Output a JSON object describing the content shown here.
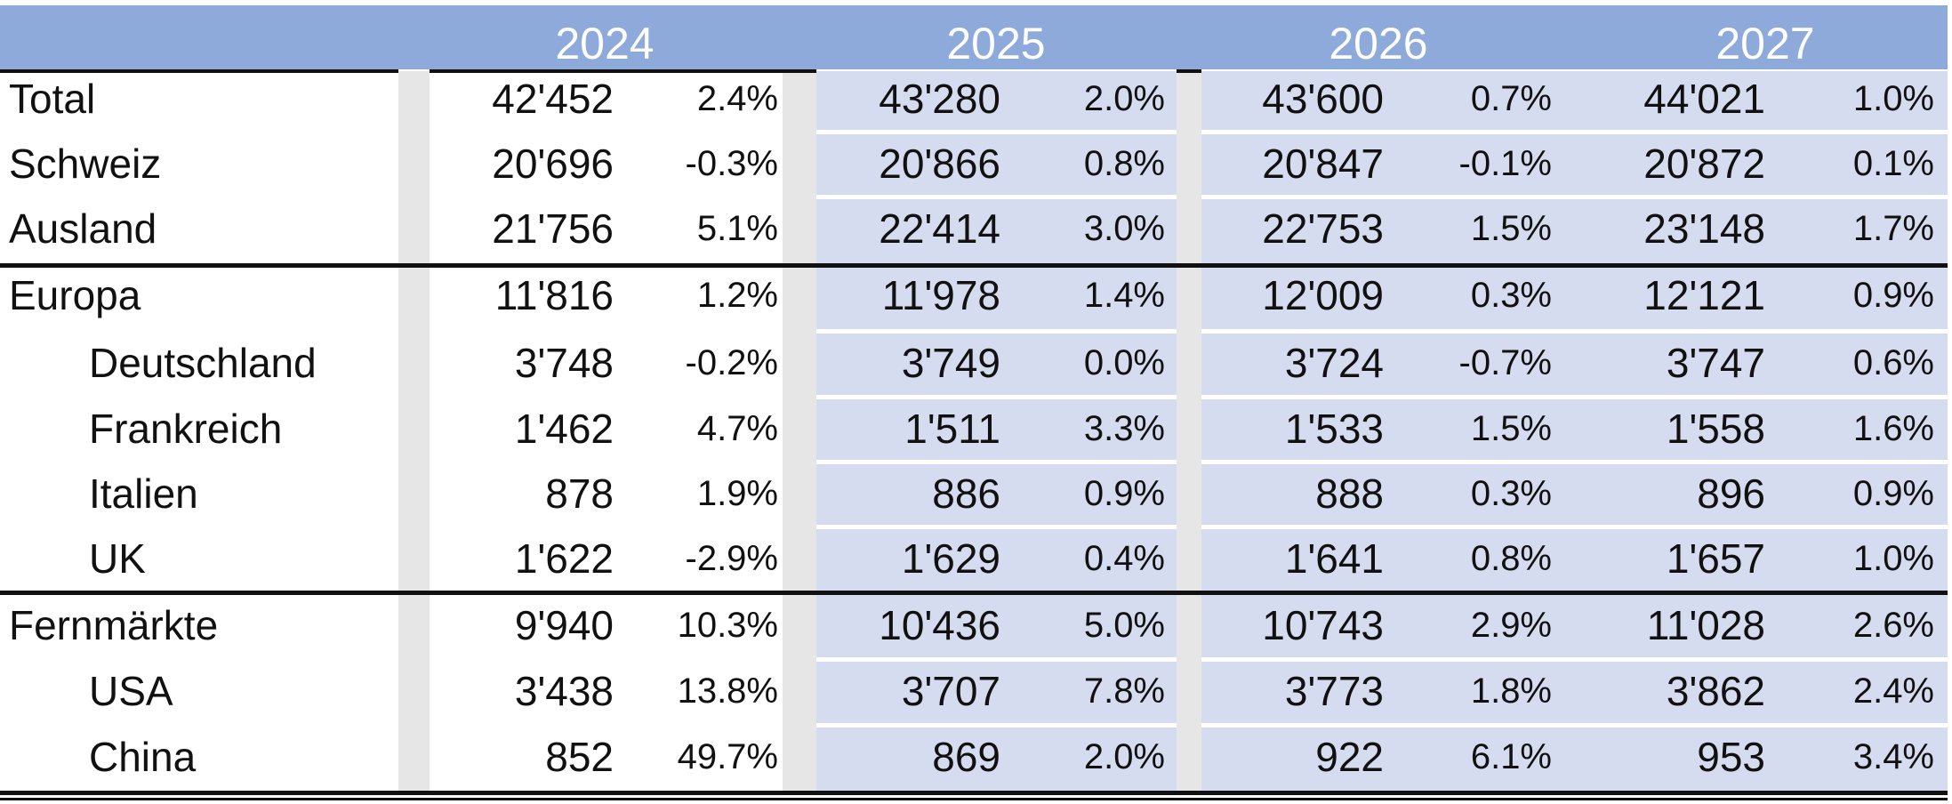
{
  "years": [
    "2024",
    "2025",
    "2026",
    "2027"
  ],
  "rows": [
    {
      "label": "Total",
      "cells": [
        [
          "42'452",
          "2.4%"
        ],
        [
          "43'280",
          "2.0%"
        ],
        [
          "43'600",
          "0.7%"
        ],
        [
          "44'021",
          "1.0%"
        ]
      ]
    },
    {
      "label": "Schweiz",
      "cells": [
        [
          "20'696",
          "-0.3%"
        ],
        [
          "20'866",
          "0.8%"
        ],
        [
          "20'847",
          "-0.1%"
        ],
        [
          "20'872",
          "0.1%"
        ]
      ]
    },
    {
      "label": "Ausland",
      "cells": [
        [
          "21'756",
          "5.1%"
        ],
        [
          "22'414",
          "3.0%"
        ],
        [
          "22'753",
          "1.5%"
        ],
        [
          "23'148",
          "1.7%"
        ]
      ]
    },
    {
      "label": "Europa",
      "cells": [
        [
          "11'816",
          "1.2%"
        ],
        [
          "11'978",
          "1.4%"
        ],
        [
          "12'009",
          "0.3%"
        ],
        [
          "12'121",
          "0.9%"
        ]
      ]
    },
    {
      "label": "Deutschland",
      "cells": [
        [
          "3'748",
          "-0.2%"
        ],
        [
          "3'749",
          "0.0%"
        ],
        [
          "3'724",
          "-0.7%"
        ],
        [
          "3'747",
          "0.6%"
        ]
      ]
    },
    {
      "label": "Frankreich",
      "cells": [
        [
          "1'462",
          "4.7%"
        ],
        [
          "1'511",
          "3.3%"
        ],
        [
          "1'533",
          "1.5%"
        ],
        [
          "1'558",
          "1.6%"
        ]
      ]
    },
    {
      "label": "Italien",
      "cells": [
        [
          "878",
          "1.9%"
        ],
        [
          "886",
          "0.9%"
        ],
        [
          "888",
          "0.3%"
        ],
        [
          "896",
          "0.9%"
        ]
      ]
    },
    {
      "label": "UK",
      "cells": [
        [
          "1'622",
          "-2.9%"
        ],
        [
          "1'629",
          "0.4%"
        ],
        [
          "1'641",
          "0.8%"
        ],
        [
          "1'657",
          "1.0%"
        ]
      ]
    },
    {
      "label": "Fernmärkte",
      "cells": [
        [
          "9'940",
          "10.3%"
        ],
        [
          "10'436",
          "5.0%"
        ],
        [
          "10'743",
          "2.9%"
        ],
        [
          "11'028",
          "2.6%"
        ]
      ]
    },
    {
      "label": "USA",
      "cells": [
        [
          "3'438",
          "13.8%"
        ],
        [
          "3'707",
          "7.8%"
        ],
        [
          "3'773",
          "1.8%"
        ],
        [
          "3'862",
          "2.4%"
        ]
      ]
    },
    {
      "label": "China",
      "cells": [
        [
          "852",
          "49.7%"
        ],
        [
          "869",
          "2.0%"
        ],
        [
          "922",
          "6.1%"
        ],
        [
          "953",
          "3.4%"
        ]
      ]
    }
  ]
}
